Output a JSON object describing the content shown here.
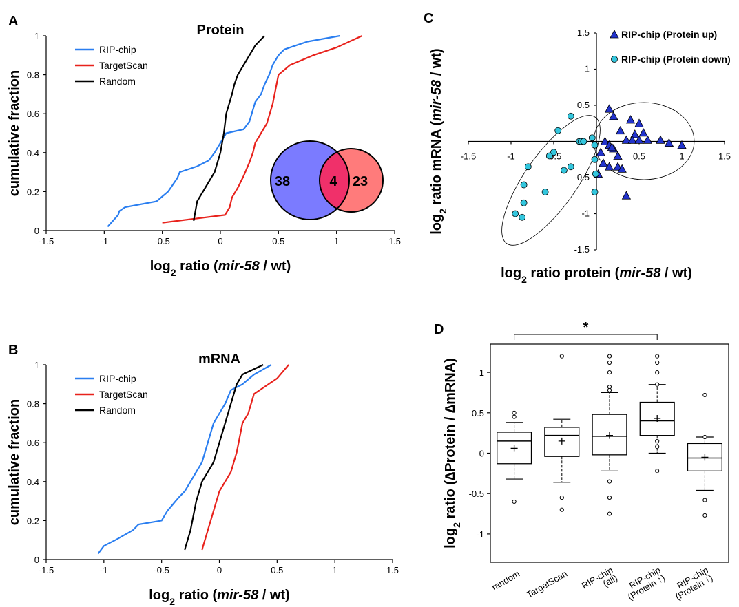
{
  "chart_data": [
    {
      "type": "cdf",
      "panel": "A",
      "title": "Protein",
      "xlabel": [
        "log",
        "2",
        " ratio (",
        "mir-58",
        " / wt)"
      ],
      "ylabel": "cumulative fraction",
      "xlim": [
        -1.5,
        1.5
      ],
      "ylim": [
        0,
        1
      ],
      "xticks": [
        -1.5,
        -1,
        -0.5,
        0,
        0.5,
        1,
        1.5
      ],
      "yticks": [
        0,
        0.2,
        0.4,
        0.6,
        0.8,
        1
      ],
      "series": [
        {
          "name": "RIP-chip",
          "color": "#2a7ef0",
          "x": [
            -0.97,
            -0.88,
            -0.87,
            -0.82,
            -0.55,
            -0.45,
            -0.37,
            -0.35,
            -0.2,
            -0.1,
            -0.05,
            0.0,
            0.05,
            0.2,
            0.25,
            0.27,
            0.3,
            0.35,
            0.38,
            0.42,
            0.45,
            0.5,
            0.55,
            0.6,
            0.75,
            1.03
          ],
          "values": [
            0.02,
            0.08,
            0.1,
            0.12,
            0.15,
            0.2,
            0.27,
            0.3,
            0.33,
            0.36,
            0.4,
            0.45,
            0.5,
            0.52,
            0.56,
            0.6,
            0.66,
            0.7,
            0.75,
            0.8,
            0.85,
            0.9,
            0.93,
            0.94,
            0.97,
            1.0
          ]
        },
        {
          "name": "TargetScan",
          "color": "#e8221c",
          "x": [
            -0.5,
            0.04,
            0.08,
            0.1,
            0.15,
            0.2,
            0.25,
            0.28,
            0.3,
            0.35,
            0.4,
            0.45,
            0.5,
            0.6,
            0.8,
            1.0,
            1.22
          ],
          "values": [
            0.04,
            0.08,
            0.12,
            0.17,
            0.22,
            0.28,
            0.35,
            0.4,
            0.45,
            0.5,
            0.55,
            0.65,
            0.8,
            0.85,
            0.9,
            0.94,
            1.0
          ]
        },
        {
          "name": "Random",
          "color": "#000000",
          "x": [
            -0.23,
            -0.2,
            -0.1,
            -0.05,
            0.0,
            0.03,
            0.05,
            0.1,
            0.12,
            0.15,
            0.2,
            0.25,
            0.3,
            0.38
          ],
          "values": [
            0.05,
            0.15,
            0.25,
            0.3,
            0.4,
            0.5,
            0.6,
            0.7,
            0.75,
            0.8,
            0.85,
            0.9,
            0.95,
            1.0
          ]
        }
      ]
    },
    {
      "type": "venn",
      "values": [
        38,
        4,
        23
      ],
      "colors": [
        "#7b7bff",
        "#f0306a",
        "#ff7b7b"
      ]
    },
    {
      "type": "cdf",
      "panel": "B",
      "title": "mRNA",
      "xlabel": [
        "log",
        "2",
        " ratio (",
        "mir-58",
        " / wt)"
      ],
      "ylabel": "cumulative fraction",
      "xlim": [
        -1.5,
        1.5
      ],
      "ylim": [
        0,
        1
      ],
      "xticks": [
        -1.5,
        -1,
        -0.5,
        0,
        0.5,
        1,
        1.5
      ],
      "yticks": [
        0,
        0.2,
        0.4,
        0.6,
        0.8,
        1
      ],
      "series": [
        {
          "name": "RIP-chip",
          "color": "#2a7ef0",
          "x": [
            -1.05,
            -1.0,
            -0.9,
            -0.75,
            -0.7,
            -0.5,
            -0.45,
            -0.35,
            -0.3,
            -0.2,
            -0.15,
            -0.1,
            -0.05,
            0,
            0.05,
            0.1,
            0.2,
            0.3,
            0.45
          ],
          "values": [
            0.03,
            0.07,
            0.1,
            0.15,
            0.18,
            0.2,
            0.25,
            0.32,
            0.35,
            0.45,
            0.5,
            0.6,
            0.7,
            0.75,
            0.8,
            0.87,
            0.9,
            0.95,
            1.0
          ]
        },
        {
          "name": "TargetScan",
          "color": "#e8221c",
          "x": [
            -0.15,
            -0.1,
            -0.05,
            0,
            0.05,
            0.1,
            0.15,
            0.2,
            0.25,
            0.3,
            0.5,
            0.6
          ],
          "values": [
            0.05,
            0.15,
            0.25,
            0.35,
            0.4,
            0.45,
            0.55,
            0.7,
            0.75,
            0.85,
            0.93,
            1.0
          ]
        },
        {
          "name": "Random",
          "color": "#000000",
          "x": [
            -0.3,
            -0.25,
            -0.2,
            -0.15,
            -0.05,
            0,
            0.05,
            0.1,
            0.15,
            0.2,
            0.38
          ],
          "values": [
            0.05,
            0.15,
            0.3,
            0.4,
            0.5,
            0.6,
            0.7,
            0.8,
            0.9,
            0.95,
            1.0
          ]
        }
      ]
    },
    {
      "type": "scatter",
      "panel": "C",
      "xlabel": [
        "log",
        "2",
        " ratio protein (",
        "mir-58",
        " / wt)"
      ],
      "ylabel": [
        "log",
        "2",
        " ratio mRNA (",
        "mir-58",
        " / wt)"
      ],
      "xlim": [
        -1.5,
        1.5
      ],
      "ylim": [
        -1.5,
        1.5
      ],
      "xticks": [
        -1.5,
        -1,
        -0.5,
        0.5,
        1,
        1.5
      ],
      "yticks": [
        -1.5,
        -1,
        -0.5,
        0.5,
        1,
        1.5
      ],
      "series": [
        {
          "name": "RIP-chip (Protein up)",
          "color": "#2233cc",
          "marker": "triangle",
          "x": [
            0.15,
            0.2,
            0.28,
            0.4,
            0.5,
            0.55,
            0.45,
            0.35,
            0.42,
            0.5,
            0.6,
            0.75,
            0.85,
            1.0,
            0.1,
            0.15,
            0.2,
            0.25,
            0.25,
            0.3,
            0.15,
            0.05,
            0.02,
            0.18,
            0.35,
            0.08
          ],
          "values": [
            0.45,
            0.35,
            0.15,
            0.3,
            0.25,
            0.12,
            0.1,
            0.02,
            0.02,
            0.02,
            0.02,
            0.02,
            -0.02,
            -0.05,
            0.0,
            -0.05,
            -0.1,
            -0.2,
            -0.35,
            -0.38,
            -0.35,
            -0.15,
            -0.45,
            -0.08,
            -0.75,
            -0.3
          ]
        },
        {
          "name": "RIP-chip (Protein down)",
          "color": "#33c6dd",
          "marker": "circle",
          "x": [
            -0.3,
            -0.45,
            -0.2,
            -0.18,
            -0.15,
            -0.05,
            -0.02,
            -0.5,
            -0.55,
            -0.3,
            -0.38,
            -0.8,
            -0.85,
            -0.6,
            -0.85,
            -0.95,
            -0.87,
            -0.02,
            -0.02,
            -0.01
          ],
          "values": [
            0.35,
            0.15,
            0.0,
            0.0,
            0.0,
            0.05,
            -0.05,
            -0.15,
            -0.2,
            -0.35,
            -0.4,
            -0.35,
            -0.6,
            -0.7,
            -0.85,
            -1.0,
            -1.05,
            -0.25,
            -0.7,
            -0.45
          ]
        }
      ]
    },
    {
      "type": "box",
      "panel": "D",
      "ylabel": [
        "log",
        "2",
        " ratio (∆Protein / ∆mRNA)"
      ],
      "ylim": [
        -1.35,
        1.35
      ],
      "yticks": [
        -1,
        -0.5,
        0,
        0.5,
        1
      ],
      "categories": [
        [
          "random"
        ],
        [
          "TargetScan"
        ],
        [
          "RIP-chip",
          "(all)"
        ],
        [
          "RIP-chip",
          "(Protein ↑)"
        ],
        [
          "RIP-chip",
          "(Protein ↓)"
        ]
      ],
      "boxes": [
        {
          "low": -0.32,
          "q1": -0.13,
          "median": 0.15,
          "q3": 0.26,
          "high": 0.38,
          "mean": 0.06,
          "outliers": [
            0.5,
            0.45,
            -0.6
          ]
        },
        {
          "low": -0.36,
          "q1": -0.04,
          "median": 0.22,
          "q3": 0.32,
          "high": 0.42,
          "mean": 0.15,
          "outliers": [
            1.2,
            -0.55,
            -0.7
          ]
        },
        {
          "low": -0.22,
          "q1": -0.02,
          "median": 0.21,
          "q3": 0.48,
          "high": 0.75,
          "mean": 0.22,
          "outliers": [
            1.2,
            1.12,
            1.0,
            0.82,
            0.78,
            -0.35,
            -0.55,
            -0.75
          ]
        },
        {
          "low": 0.0,
          "q1": 0.22,
          "median": 0.4,
          "q3": 0.63,
          "high": 0.85,
          "mean": 0.43,
          "outliers": [
            1.2,
            1.12,
            1.0,
            0.85,
            0.15,
            0.08,
            -0.22
          ]
        },
        {
          "low": -0.46,
          "q1": -0.22,
          "median": -0.06,
          "q3": 0.12,
          "high": 0.2,
          "mean": -0.05,
          "outliers": [
            0.72,
            0.2,
            -0.58,
            -0.77
          ]
        }
      ],
      "annotation": "*",
      "bracket": [
        0,
        3
      ]
    }
  ]
}
